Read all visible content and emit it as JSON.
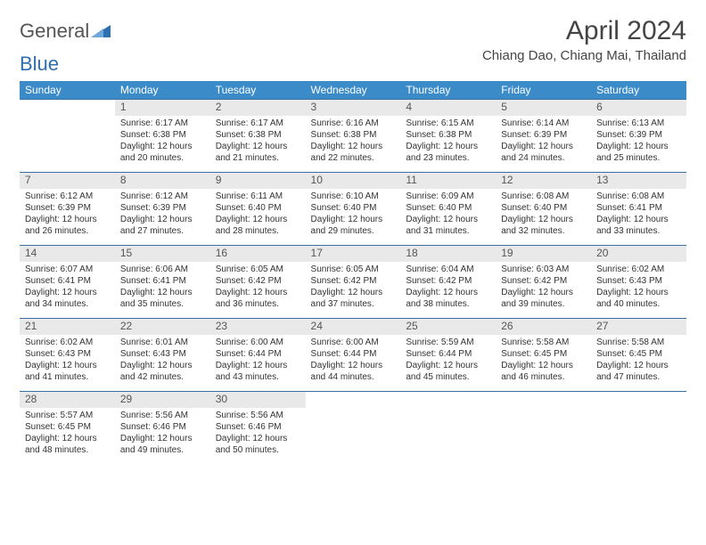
{
  "brand": {
    "part1": "General",
    "part2": "Blue",
    "part2_color": "#2e6fb0",
    "tri_color": "#2e6fb0"
  },
  "title": "April 2024",
  "location": "Chiang Dao, Chiang Mai, Thailand",
  "colors": {
    "header_bg": "#3b8bc9",
    "header_text": "#ffffff",
    "daynum_bg": "#e9e9e9",
    "daynum_border_top": "#3b6fa0",
    "text": "#333333",
    "background": "#ffffff"
  },
  "typography": {
    "title_fontsize": 30,
    "location_fontsize": 15,
    "weekday_fontsize": 12,
    "daynum_fontsize": 12,
    "cell_fontsize": 10
  },
  "layout": {
    "columns": 7,
    "rows": 5,
    "first_weekday_index": 1
  },
  "weekdays": [
    "Sunday",
    "Monday",
    "Tuesday",
    "Wednesday",
    "Thursday",
    "Friday",
    "Saturday"
  ],
  "days": [
    {
      "n": 1,
      "sunrise": "6:17 AM",
      "sunset": "6:38 PM",
      "daylight": "12 hours and 20 minutes."
    },
    {
      "n": 2,
      "sunrise": "6:17 AM",
      "sunset": "6:38 PM",
      "daylight": "12 hours and 21 minutes."
    },
    {
      "n": 3,
      "sunrise": "6:16 AM",
      "sunset": "6:38 PM",
      "daylight": "12 hours and 22 minutes."
    },
    {
      "n": 4,
      "sunrise": "6:15 AM",
      "sunset": "6:38 PM",
      "daylight": "12 hours and 23 minutes."
    },
    {
      "n": 5,
      "sunrise": "6:14 AM",
      "sunset": "6:39 PM",
      "daylight": "12 hours and 24 minutes."
    },
    {
      "n": 6,
      "sunrise": "6:13 AM",
      "sunset": "6:39 PM",
      "daylight": "12 hours and 25 minutes."
    },
    {
      "n": 7,
      "sunrise": "6:12 AM",
      "sunset": "6:39 PM",
      "daylight": "12 hours and 26 minutes."
    },
    {
      "n": 8,
      "sunrise": "6:12 AM",
      "sunset": "6:39 PM",
      "daylight": "12 hours and 27 minutes."
    },
    {
      "n": 9,
      "sunrise": "6:11 AM",
      "sunset": "6:40 PM",
      "daylight": "12 hours and 28 minutes."
    },
    {
      "n": 10,
      "sunrise": "6:10 AM",
      "sunset": "6:40 PM",
      "daylight": "12 hours and 29 minutes."
    },
    {
      "n": 11,
      "sunrise": "6:09 AM",
      "sunset": "6:40 PM",
      "daylight": "12 hours and 31 minutes."
    },
    {
      "n": 12,
      "sunrise": "6:08 AM",
      "sunset": "6:40 PM",
      "daylight": "12 hours and 32 minutes."
    },
    {
      "n": 13,
      "sunrise": "6:08 AM",
      "sunset": "6:41 PM",
      "daylight": "12 hours and 33 minutes."
    },
    {
      "n": 14,
      "sunrise": "6:07 AM",
      "sunset": "6:41 PM",
      "daylight": "12 hours and 34 minutes."
    },
    {
      "n": 15,
      "sunrise": "6:06 AM",
      "sunset": "6:41 PM",
      "daylight": "12 hours and 35 minutes."
    },
    {
      "n": 16,
      "sunrise": "6:05 AM",
      "sunset": "6:42 PM",
      "daylight": "12 hours and 36 minutes."
    },
    {
      "n": 17,
      "sunrise": "6:05 AM",
      "sunset": "6:42 PM",
      "daylight": "12 hours and 37 minutes."
    },
    {
      "n": 18,
      "sunrise": "6:04 AM",
      "sunset": "6:42 PM",
      "daylight": "12 hours and 38 minutes."
    },
    {
      "n": 19,
      "sunrise": "6:03 AM",
      "sunset": "6:42 PM",
      "daylight": "12 hours and 39 minutes."
    },
    {
      "n": 20,
      "sunrise": "6:02 AM",
      "sunset": "6:43 PM",
      "daylight": "12 hours and 40 minutes."
    },
    {
      "n": 21,
      "sunrise": "6:02 AM",
      "sunset": "6:43 PM",
      "daylight": "12 hours and 41 minutes."
    },
    {
      "n": 22,
      "sunrise": "6:01 AM",
      "sunset": "6:43 PM",
      "daylight": "12 hours and 42 minutes."
    },
    {
      "n": 23,
      "sunrise": "6:00 AM",
      "sunset": "6:44 PM",
      "daylight": "12 hours and 43 minutes."
    },
    {
      "n": 24,
      "sunrise": "6:00 AM",
      "sunset": "6:44 PM",
      "daylight": "12 hours and 44 minutes."
    },
    {
      "n": 25,
      "sunrise": "5:59 AM",
      "sunset": "6:44 PM",
      "daylight": "12 hours and 45 minutes."
    },
    {
      "n": 26,
      "sunrise": "5:58 AM",
      "sunset": "6:45 PM",
      "daylight": "12 hours and 46 minutes."
    },
    {
      "n": 27,
      "sunrise": "5:58 AM",
      "sunset": "6:45 PM",
      "daylight": "12 hours and 47 minutes."
    },
    {
      "n": 28,
      "sunrise": "5:57 AM",
      "sunset": "6:45 PM",
      "daylight": "12 hours and 48 minutes."
    },
    {
      "n": 29,
      "sunrise": "5:56 AM",
      "sunset": "6:46 PM",
      "daylight": "12 hours and 49 minutes."
    },
    {
      "n": 30,
      "sunrise": "5:56 AM",
      "sunset": "6:46 PM",
      "daylight": "12 hours and 50 minutes."
    }
  ],
  "labels": {
    "sunrise": "Sunrise: ",
    "sunset": "Sunset: ",
    "daylight": "Daylight: "
  }
}
